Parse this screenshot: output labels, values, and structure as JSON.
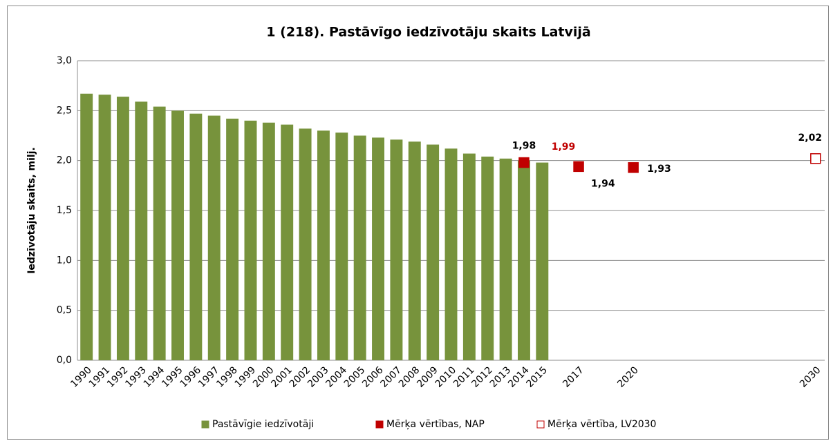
{
  "chart_data": {
    "type": "bar",
    "title": "1 (218). Pastāvīgo iedzīvotāju skaits Latvijā",
    "y_label": "Iedzīvotāju skaits, milj.",
    "categories": [
      "1990",
      "1991",
      "1992",
      "1993",
      "1994",
      "1995",
      "1996",
      "1997",
      "1998",
      "1999",
      "2000",
      "2001",
      "2002",
      "2003",
      "2004",
      "2005",
      "2006",
      "2007",
      "2008",
      "2009",
      "2010",
      "2011",
      "2012",
      "2013",
      "2014",
      "2015",
      null,
      "2017",
      null,
      null,
      "2020",
      null,
      null,
      null,
      null,
      null,
      null,
      null,
      null,
      null,
      "2030"
    ],
    "series": [
      {
        "name": "Pastāvīgie iedzīvotāji",
        "type": "bar",
        "color": "#77933c",
        "values": [
          2.67,
          2.66,
          2.64,
          2.59,
          2.54,
          2.5,
          2.47,
          2.45,
          2.42,
          2.4,
          2.38,
          2.36,
          2.32,
          2.3,
          2.28,
          2.25,
          2.23,
          2.21,
          2.19,
          2.16,
          2.12,
          2.07,
          2.04,
          2.02,
          2.0,
          1.98,
          null,
          null,
          null,
          null,
          null,
          null,
          null,
          null,
          null,
          null,
          null,
          null,
          null,
          null,
          null
        ]
      },
      {
        "name": "Mērķa vērtības, NAP",
        "type": "marker",
        "color": "#c00000",
        "filled": true,
        "values": [
          null,
          null,
          null,
          null,
          null,
          null,
          null,
          null,
          null,
          null,
          null,
          null,
          null,
          null,
          null,
          null,
          null,
          null,
          null,
          null,
          null,
          null,
          null,
          null,
          1.98,
          null,
          null,
          1.94,
          null,
          null,
          1.93,
          null,
          null,
          null,
          null,
          null,
          null,
          null,
          null,
          null,
          null
        ],
        "value_labels": [
          null,
          null,
          null,
          null,
          null,
          null,
          null,
          null,
          null,
          null,
          null,
          null,
          null,
          null,
          null,
          null,
          null,
          null,
          null,
          null,
          null,
          null,
          null,
          null,
          "1,98",
          null,
          null,
          "1,94",
          null,
          null,
          "1,93",
          null,
          null,
          null,
          null,
          null,
          null,
          null,
          null,
          null,
          null
        ]
      },
      {
        "name": "Mērķa vērtība, LV2030",
        "type": "marker",
        "color": "#c00000",
        "filled": false,
        "values": [
          null,
          null,
          null,
          null,
          null,
          null,
          null,
          null,
          null,
          null,
          null,
          null,
          null,
          null,
          null,
          null,
          null,
          null,
          null,
          null,
          null,
          null,
          null,
          null,
          null,
          null,
          null,
          null,
          null,
          null,
          null,
          null,
          null,
          null,
          null,
          null,
          null,
          null,
          null,
          null,
          2.02
        ],
        "value_labels": [
          null,
          null,
          null,
          null,
          null,
          null,
          null,
          null,
          null,
          null,
          null,
          null,
          null,
          null,
          null,
          null,
          null,
          null,
          null,
          null,
          null,
          null,
          null,
          null,
          null,
          null,
          null,
          null,
          null,
          null,
          null,
          null,
          null,
          null,
          null,
          null,
          null,
          null,
          null,
          null,
          "2,02"
        ]
      }
    ],
    "annotations": [
      {
        "text": "1,99",
        "color": "#c00000"
      }
    ],
    "ylim": [
      0,
      3
    ],
    "yticks": [
      {
        "value": 0,
        "label": "0,0"
      },
      {
        "value": 0.5,
        "label": "0,5"
      },
      {
        "value": 1,
        "label": "1,0"
      },
      {
        "value": 1.5,
        "label": "1,5"
      },
      {
        "value": 2,
        "label": "2,0"
      },
      {
        "value": 2.5,
        "label": "2,5"
      },
      {
        "value": 3,
        "label": "3,0"
      }
    ],
    "grid": true,
    "legend": "bottom"
  }
}
